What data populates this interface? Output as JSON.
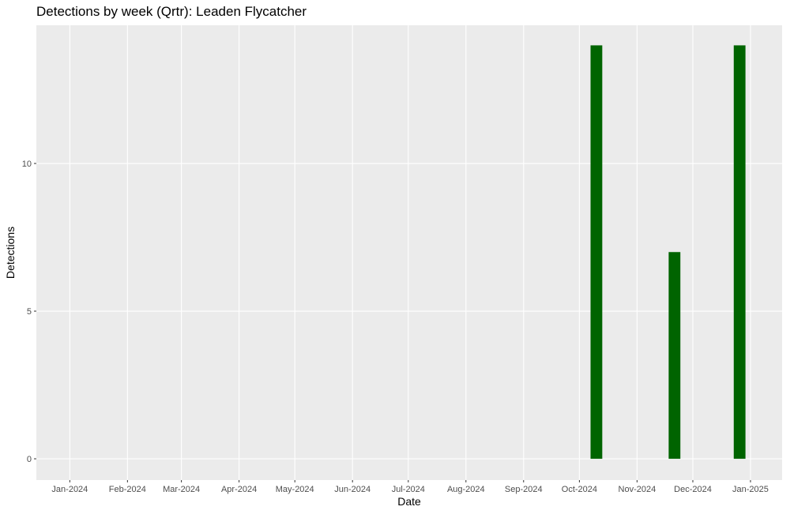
{
  "chart_data": {
    "type": "bar",
    "title": "Detections by week (Qrtr): Leaden Flycatcher",
    "x_label": "Date",
    "y_label": "Detections",
    "x": [
      "2024-10-07",
      "2024-11-18",
      "2024-12-23"
    ],
    "values": [
      14,
      7,
      14
    ],
    "color": "#006400",
    "xlim": [
      "2023-12-14",
      "2025-01-18"
    ],
    "xticks": [
      {
        "value": "2024-01-01",
        "label": "Jan-2024"
      },
      {
        "value": "2024-02-01",
        "label": "Feb-2024"
      },
      {
        "value": "2024-03-01",
        "label": "Mar-2024"
      },
      {
        "value": "2024-04-01",
        "label": "Apr-2024"
      },
      {
        "value": "2024-05-01",
        "label": "May-2024"
      },
      {
        "value": "2024-06-01",
        "label": "Jun-2024"
      },
      {
        "value": "2024-07-01",
        "label": "Jul-2024"
      },
      {
        "value": "2024-08-01",
        "label": "Aug-2024"
      },
      {
        "value": "2024-09-01",
        "label": "Sep-2024"
      },
      {
        "value": "2024-10-01",
        "label": "Oct-2024"
      },
      {
        "value": "2024-11-01",
        "label": "Nov-2024"
      },
      {
        "value": "2024-12-01",
        "label": "Dec-2024"
      },
      {
        "value": "2025-01-01",
        "label": "Jan-2025"
      }
    ],
    "ylim": [
      -0.72,
      14.68
    ],
    "yticks": [
      0,
      5,
      10
    ],
    "grid": true
  }
}
